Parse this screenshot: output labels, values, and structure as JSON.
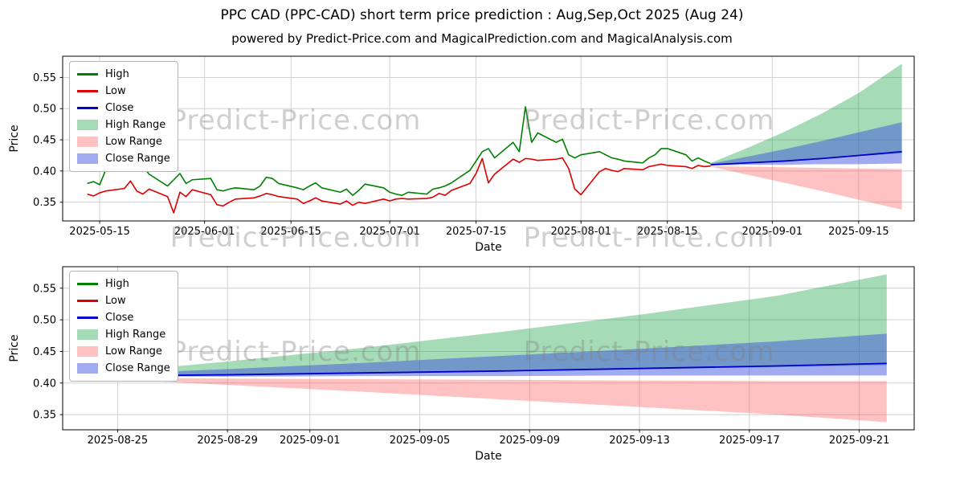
{
  "title": "PPC CAD (PPC-CAD) short term price prediction : Aug,Sep,Oct 2025 (Aug 24)",
  "subtitle": "powered by Predict-Price.com and MagicalPrediction.com and MagicalAnalysis.com",
  "watermark": "Predict-Price.com",
  "colors": {
    "high": "#008000",
    "low": "#dd0000",
    "close": "#0000cc",
    "high_range": "rgba(0,153,51,0.35)",
    "low_range": "rgba(255,80,80,0.35)",
    "close_range": "rgba(51,68,221,0.45)",
    "grid": "#cccccc",
    "spine": "#000000"
  },
  "legend": [
    {
      "label": "High",
      "swatch": "line",
      "color": "high"
    },
    {
      "label": "Low",
      "swatch": "line",
      "color": "low"
    },
    {
      "label": "Close",
      "swatch": "line",
      "color": "close"
    },
    {
      "label": "High Range",
      "swatch": "patch",
      "color": "high_range"
    },
    {
      "label": "Low Range",
      "swatch": "patch",
      "color": "low_range"
    },
    {
      "label": "Close Range",
      "swatch": "patch",
      "color": "close_range"
    }
  ],
  "chart_data": [
    {
      "type": "line",
      "xlabel": "Date",
      "ylabel": "Price",
      "grid": true,
      "legend_position": "upper left",
      "xlim": [
        "2025-05-09",
        "2025-09-24"
      ],
      "ylim": [
        0.32,
        0.584
      ],
      "yticks": [
        0.35,
        0.4,
        0.45,
        0.5,
        0.55
      ],
      "xticks": [
        "2025-05-15",
        "2025-06-01",
        "2025-06-15",
        "2025-07-01",
        "2025-07-15",
        "2025-08-01",
        "2025-08-15",
        "2025-09-01",
        "2025-09-15"
      ],
      "history": {
        "dates": [
          "2025-05-13",
          "2025-05-14",
          "2025-05-15",
          "2025-05-16",
          "2025-05-19",
          "2025-05-20",
          "2025-05-21",
          "2025-05-22",
          "2025-05-23",
          "2025-05-26",
          "2025-05-27",
          "2025-05-28",
          "2025-05-29",
          "2025-05-30",
          "2025-06-02",
          "2025-06-03",
          "2025-06-04",
          "2025-06-05",
          "2025-06-06",
          "2025-06-09",
          "2025-06-10",
          "2025-06-11",
          "2025-06-12",
          "2025-06-13",
          "2025-06-16",
          "2025-06-17",
          "2025-06-18",
          "2025-06-19",
          "2025-06-20",
          "2025-06-23",
          "2025-06-24",
          "2025-06-25",
          "2025-06-26",
          "2025-06-27",
          "2025-06-30",
          "2025-07-01",
          "2025-07-02",
          "2025-07-03",
          "2025-07-04",
          "2025-07-07",
          "2025-07-08",
          "2025-07-09",
          "2025-07-10",
          "2025-07-11",
          "2025-07-14",
          "2025-07-15",
          "2025-07-16",
          "2025-07-17",
          "2025-07-18",
          "2025-07-21",
          "2025-07-22",
          "2025-07-23",
          "2025-07-24",
          "2025-07-25",
          "2025-07-28",
          "2025-07-29",
          "2025-07-30",
          "2025-07-31",
          "2025-08-01",
          "2025-08-04",
          "2025-08-05",
          "2025-08-06",
          "2025-08-07",
          "2025-08-08",
          "2025-08-11",
          "2025-08-12",
          "2025-08-13",
          "2025-08-14",
          "2025-08-15",
          "2025-08-18",
          "2025-08-19",
          "2025-08-20",
          "2025-08-21",
          "2025-08-22"
        ],
        "high": [
          0.38,
          0.383,
          0.378,
          0.402,
          0.428,
          0.415,
          0.43,
          0.408,
          0.395,
          0.376,
          0.386,
          0.396,
          0.38,
          0.386,
          0.388,
          0.37,
          0.368,
          0.371,
          0.373,
          0.37,
          0.376,
          0.39,
          0.388,
          0.38,
          0.373,
          0.37,
          0.376,
          0.381,
          0.373,
          0.366,
          0.371,
          0.361,
          0.369,
          0.379,
          0.373,
          0.366,
          0.363,
          0.361,
          0.366,
          0.363,
          0.371,
          0.373,
          0.376,
          0.381,
          0.401,
          0.416,
          0.431,
          0.436,
          0.421,
          0.446,
          0.431,
          0.503,
          0.446,
          0.461,
          0.446,
          0.451,
          0.426,
          0.421,
          0.426,
          0.431,
          0.426,
          0.421,
          0.419,
          0.416,
          0.413,
          0.421,
          0.426,
          0.436,
          0.436,
          0.426,
          0.416,
          0.421,
          0.416,
          0.412
        ],
        "low": [
          0.363,
          0.36,
          0.365,
          0.368,
          0.372,
          0.384,
          0.368,
          0.363,
          0.371,
          0.359,
          0.333,
          0.366,
          0.359,
          0.37,
          0.362,
          0.346,
          0.344,
          0.35,
          0.355,
          0.357,
          0.36,
          0.364,
          0.362,
          0.359,
          0.355,
          0.348,
          0.352,
          0.357,
          0.352,
          0.347,
          0.352,
          0.345,
          0.35,
          0.348,
          0.355,
          0.352,
          0.355,
          0.356,
          0.355,
          0.356,
          0.358,
          0.364,
          0.361,
          0.369,
          0.38,
          0.396,
          0.42,
          0.381,
          0.395,
          0.419,
          0.414,
          0.42,
          0.419,
          0.417,
          0.419,
          0.421,
          0.404,
          0.371,
          0.362,
          0.399,
          0.404,
          0.401,
          0.399,
          0.404,
          0.402,
          0.407,
          0.409,
          0.411,
          0.409,
          0.407,
          0.404,
          0.409,
          0.407,
          0.408
        ]
      },
      "prediction": {
        "dates": [
          "2025-08-22",
          "2025-08-28",
          "2025-09-03",
          "2025-09-09",
          "2025-09-15",
          "2025-09-22"
        ],
        "close": [
          0.41,
          0.413,
          0.416,
          0.42,
          0.425,
          0.431
        ],
        "close_upper": [
          0.412,
          0.423,
          0.435,
          0.448,
          0.462,
          0.478
        ],
        "close_lower": [
          0.409,
          0.41,
          0.41,
          0.411,
          0.411,
          0.412
        ],
        "high_upper": [
          0.413,
          0.437,
          0.463,
          0.492,
          0.525,
          0.572
        ],
        "high_lower": [
          0.411,
          0.414,
          0.417,
          0.42,
          0.424,
          0.428
        ],
        "low_upper": [
          0.408,
          0.407,
          0.406,
          0.405,
          0.404,
          0.403
        ],
        "low_lower": [
          0.407,
          0.394,
          0.381,
          0.368,
          0.354,
          0.338
        ]
      }
    },
    {
      "type": "line",
      "xlabel": "Date",
      "ylabel": "Price",
      "grid": true,
      "legend_position": "upper left",
      "xlim": [
        "2025-08-23",
        "2025-09-23"
      ],
      "ylim": [
        0.326,
        0.584
      ],
      "yticks": [
        0.35,
        0.4,
        0.45,
        0.5,
        0.55
      ],
      "xticks": [
        "2025-08-25",
        "2025-08-29",
        "2025-09-01",
        "2025-09-05",
        "2025-09-09",
        "2025-09-13",
        "2025-09-17",
        "2025-09-21"
      ],
      "prediction": {
        "dates": [
          "2025-08-24",
          "2025-08-29",
          "2025-09-03",
          "2025-09-08",
          "2025-09-13",
          "2025-09-18",
          "2025-09-22"
        ],
        "close": [
          0.411,
          0.413,
          0.416,
          0.419,
          0.423,
          0.427,
          0.431
        ],
        "close_upper": [
          0.413,
          0.422,
          0.432,
          0.443,
          0.454,
          0.466,
          0.478
        ],
        "close_lower": [
          0.41,
          0.41,
          0.411,
          0.411,
          0.412,
          0.412,
          0.412
        ],
        "high_upper": [
          0.414,
          0.434,
          0.456,
          0.481,
          0.508,
          0.538,
          0.572
        ],
        "high_lower": [
          0.412,
          0.414,
          0.417,
          0.419,
          0.422,
          0.425,
          0.428
        ],
        "low_upper": [
          0.409,
          0.407,
          0.406,
          0.405,
          0.404,
          0.403,
          0.403
        ],
        "low_lower": [
          0.408,
          0.397,
          0.386,
          0.374,
          0.362,
          0.35,
          0.338
        ]
      }
    }
  ]
}
